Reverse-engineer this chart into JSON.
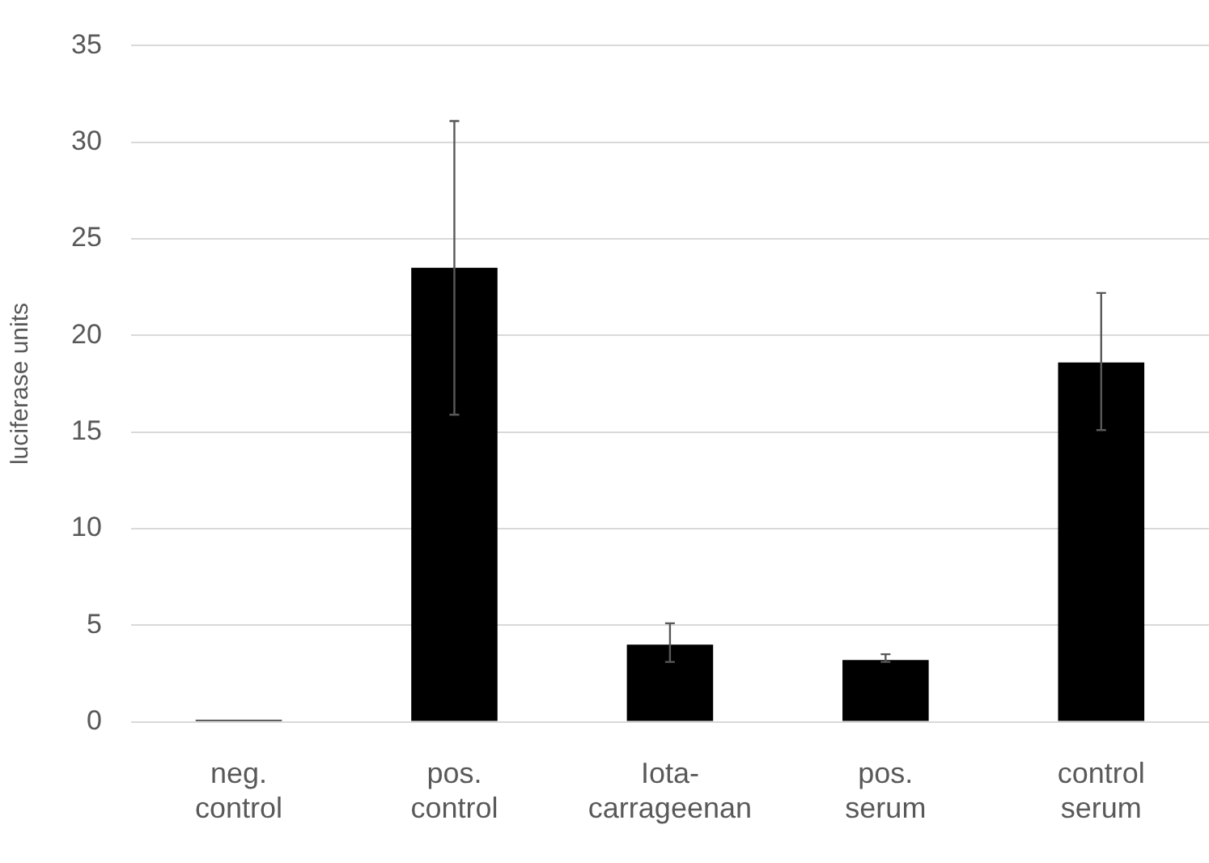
{
  "chart_data": {
    "type": "bar",
    "ylabel": "luciferase units",
    "categories": [
      "neg. control",
      "pos. control",
      "Iota-carrageenan",
      "pos. serum",
      "control serum"
    ],
    "values": [
      0.1,
      23.5,
      4.0,
      3.2,
      18.6
    ],
    "errors": [
      null,
      [
        15.9,
        31.1
      ],
      [
        3.1,
        5.1
      ],
      [
        3.1,
        3.5
      ],
      [
        15.1,
        22.2
      ]
    ],
    "color": "#000000",
    "ylim": [
      0,
      35
    ],
    "yticks": [
      0,
      5,
      10,
      15,
      20,
      25,
      30,
      35
    ],
    "grid": "y",
    "legend": false
  }
}
